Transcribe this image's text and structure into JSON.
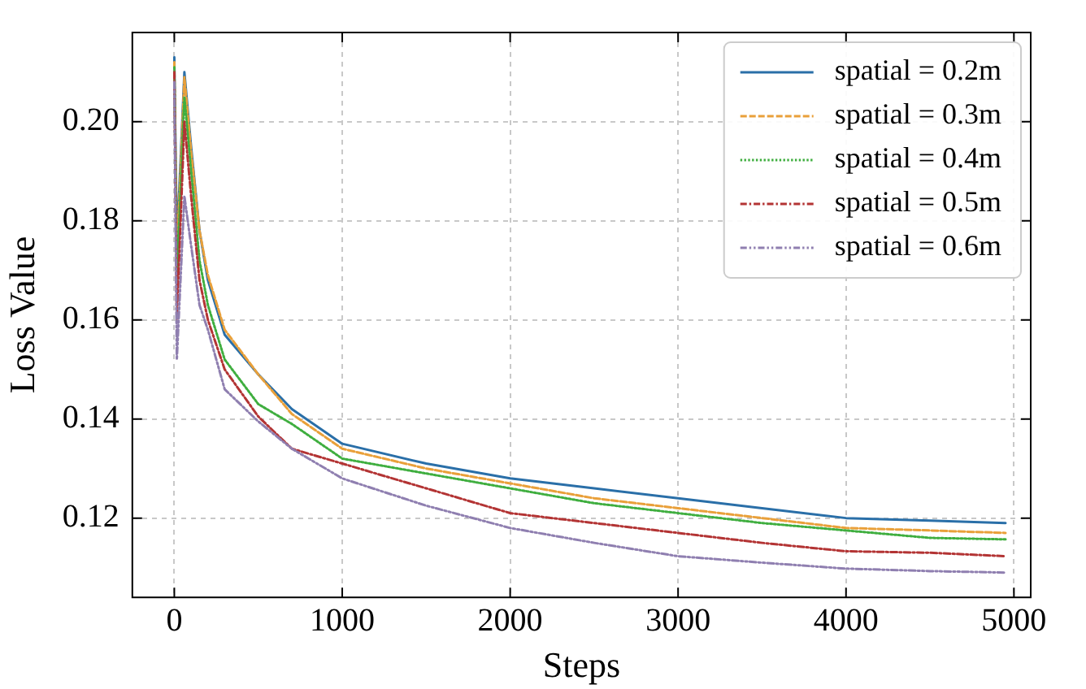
{
  "chart_data": {
    "type": "line",
    "xlabel": "Steps",
    "ylabel": "Loss Value",
    "x": [
      0,
      15,
      60,
      100,
      150,
      200,
      300,
      500,
      700,
      1000,
      1500,
      2000,
      2500,
      3000,
      3500,
      4000,
      4500,
      4950
    ],
    "xlim": [
      -250,
      5100
    ],
    "xticks": [
      0,
      1000,
      2000,
      3000,
      4000,
      5000
    ],
    "ylim": [
      0.104,
      0.218
    ],
    "yticks": [
      0.12,
      0.14,
      0.16,
      0.18,
      {
        "value": 0.2,
        "label": "0.20"
      }
    ],
    "grid": true,
    "legend": "top right",
    "series": [
      {
        "name": "spatial = 0.2m",
        "color": "#2a6fa8",
        "line_style": "solid",
        "values": [
          0.213,
          0.175,
          0.21,
          0.195,
          0.178,
          0.168,
          0.157,
          0.149,
          0.142,
          0.135,
          0.131,
          0.128,
          0.126,
          0.124,
          0.122,
          0.12,
          0.1195,
          0.119
        ]
      },
      {
        "name": "spatial = 0.3m",
        "color": "#e9a03a",
        "line_style": "dashed",
        "values": [
          0.212,
          0.172,
          0.209,
          0.194,
          0.178,
          0.169,
          0.158,
          0.149,
          0.141,
          0.134,
          0.13,
          0.127,
          0.124,
          0.122,
          0.12,
          0.118,
          0.1175,
          0.117
        ]
      },
      {
        "name": "spatial = 0.4m",
        "color": "#3fae3f",
        "line_style": "dotted",
        "values": [
          0.211,
          0.168,
          0.205,
          0.19,
          0.172,
          0.163,
          0.152,
          0.143,
          0.139,
          0.132,
          0.129,
          0.126,
          0.123,
          0.121,
          0.119,
          0.1175,
          0.116,
          0.1157
        ]
      },
      {
        "name": "spatial = 0.5m",
        "color": "#b33434",
        "line_style": "dashdot",
        "values": [
          0.21,
          0.16,
          0.2,
          0.185,
          0.168,
          0.16,
          0.15,
          0.1405,
          0.134,
          0.131,
          0.126,
          0.121,
          0.119,
          0.117,
          0.115,
          0.1133,
          0.113,
          0.1123
        ]
      },
      {
        "name": "spatial = 0.6m",
        "color": "#8f7fb0",
        "line_style": "dashdotdot",
        "values": [
          0.208,
          0.152,
          0.185,
          0.175,
          0.163,
          0.158,
          0.146,
          0.1395,
          0.134,
          0.128,
          0.1225,
          0.118,
          0.115,
          0.1123,
          0.111,
          0.1098,
          0.1093,
          0.109
        ]
      }
    ]
  }
}
